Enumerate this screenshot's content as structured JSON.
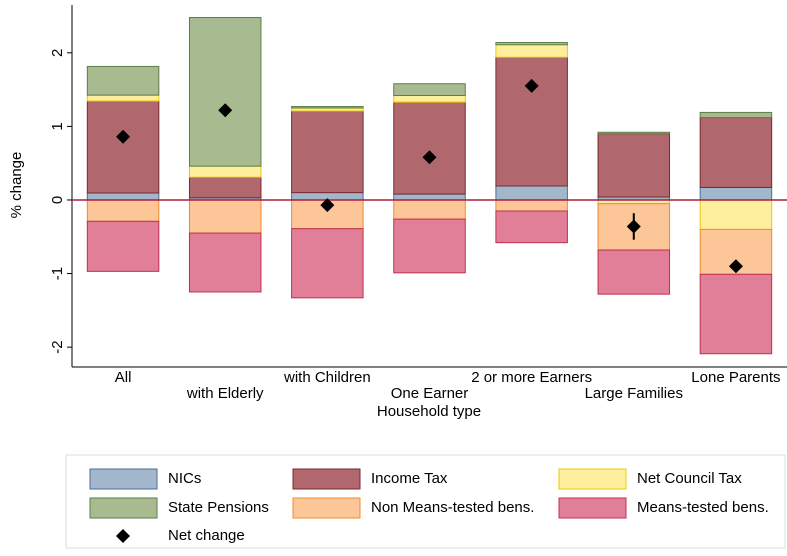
{
  "chart_data": {
    "type": "stacked-bar",
    "x_label": "Household type",
    "y_label": "% change",
    "categories": [
      "All",
      "with Elderly",
      "with Children",
      "One Earner",
      "2 or more Earners",
      "Large Families",
      "Lone Parents"
    ],
    "series": [
      {
        "name": "NICs",
        "color": "#a3b7cc",
        "stroke": "#4a6f9a",
        "values": [
          0.095,
          0.03,
          0.1,
          0.08,
          0.19,
          0.04,
          0.17
        ]
      },
      {
        "name": "Income Tax",
        "color": "#b0686e",
        "stroke": "#7a2a30",
        "values": [
          1.25,
          0.28,
          1.11,
          1.25,
          1.75,
          0.86,
          0.95
        ]
      },
      {
        "name": "Net Council Tax",
        "color": "#fdef9e",
        "stroke": "#f0c800",
        "values": [
          0.08,
          0.15,
          0.04,
          0.09,
          0.17,
          -0.05,
          -0.4
        ]
      },
      {
        "name": "State Pensions",
        "color": "#a8bb90",
        "stroke": "#5e7e46",
        "values": [
          0.39,
          2.02,
          0.02,
          0.16,
          0.03,
          0.02,
          0.07
        ]
      },
      {
        "name": "Non Means-tested bens.",
        "color": "#fcc698",
        "stroke": "#f08c28",
        "values": [
          -0.29,
          -0.45,
          -0.39,
          -0.26,
          -0.15,
          -0.63,
          -0.61
        ]
      },
      {
        "name": "Means-tested bens.",
        "color": "#e07f97",
        "stroke": "#c0304f",
        "values": [
          -0.68,
          -0.8,
          -0.94,
          -0.73,
          -0.43,
          -0.6,
          -1.08
        ]
      }
    ],
    "net": {
      "name": "Net change",
      "color": "#000000",
      "values": [
        0.86,
        1.22,
        -0.07,
        0.58,
        1.55,
        -0.36,
        -0.9
      ],
      "errors": [
        null,
        null,
        null,
        null,
        null,
        0.18,
        0.07
      ]
    },
    "ylim": [
      -2.27,
      2.65
    ],
    "yticks": [
      -2,
      -1,
      0,
      1,
      2
    ],
    "zero_line_color": "#b01b3b"
  }
}
